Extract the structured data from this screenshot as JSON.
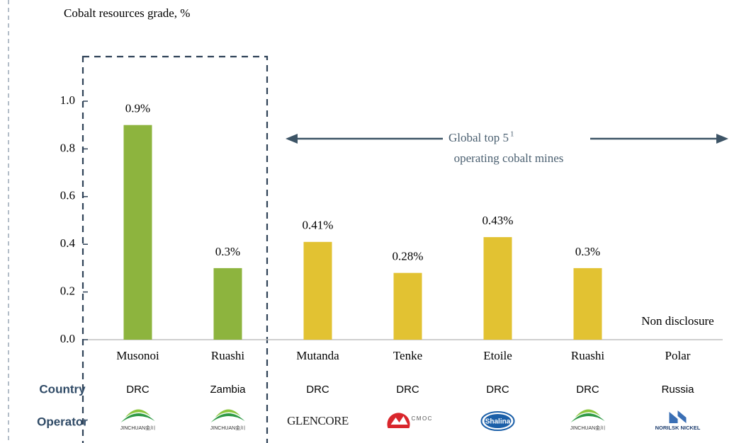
{
  "chart_data": {
    "type": "bar",
    "title": "Cobalt resources grade, %",
    "categories": [
      "Musonoi",
      "Ruashi",
      "Mutanda",
      "Tenke",
      "Etoile",
      "Ruashi",
      "Polar"
    ],
    "values": [
      0.9,
      0.3,
      0.41,
      0.28,
      0.43,
      0.3,
      null
    ],
    "value_labels": [
      "0.9%",
      "0.3%",
      "0.41%",
      "0.28%",
      "0.43%",
      "0.3%",
      null
    ],
    "colors": [
      "#8db43e",
      "#8db43e",
      "#e2c232",
      "#e2c232",
      "#e2c232",
      "#e2c232",
      "#e2c232"
    ],
    "ylim": [
      0,
      1.07
    ],
    "yticks": [
      {
        "value": 0,
        "label": "0.0"
      },
      0.2,
      0.4,
      0.6,
      0.8,
      {
        "value": 1,
        "label": "1.0"
      }
    ],
    "non_disclosure": "Non disclosure",
    "annotation_line1": "Global top 5",
    "annotation_superscript": "1",
    "annotation_line2": "operating cobalt mines",
    "country_label": "Country",
    "countries": [
      "DRC",
      "Zambia",
      "DRC",
      "DRC",
      "DRC",
      "DRC",
      "Russia"
    ],
    "operator_label": "Operator",
    "operators": [
      "JINCHUAN金川",
      "JINCHUAN金川",
      "GLENCORE",
      "CMOC",
      "Shalina",
      "JINCHUAN金川",
      "NORILSK NICKEL"
    ]
  }
}
